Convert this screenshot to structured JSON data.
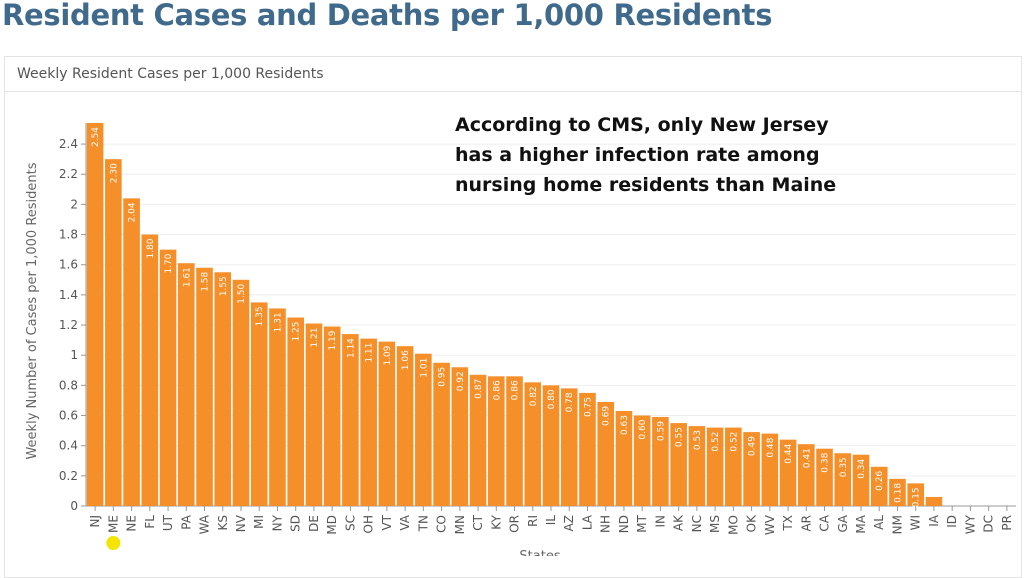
{
  "page_title": "Resident Cases and Deaths per 1,000 Residents",
  "panel_title": "Weekly Resident Cases per 1,000 Residents",
  "annotation": [
    "According to CMS, only New Jersey",
    "has a higher infection rate among",
    "nursing home residents than Maine"
  ],
  "highlight_marker": {
    "category": "ME",
    "color": "#f5e400"
  },
  "chart_data": {
    "type": "bar",
    "title": "Weekly Resident Cases per 1,000 Residents",
    "xlabel": "States",
    "ylabel": "Weekly Number of Cases per 1,000 Residents",
    "ylim": [
      0,
      2.54
    ],
    "yticks": [
      0,
      0.2,
      0.4,
      0.6,
      0.8,
      1,
      1.2,
      1.4,
      1.6,
      1.8,
      2,
      2.2,
      2.4
    ],
    "grid": true,
    "bar_color": "#f58f29",
    "categories": [
      "NJ",
      "ME",
      "NE",
      "FL",
      "UT",
      "PA",
      "WA",
      "KS",
      "NV",
      "MI",
      "NY",
      "SD",
      "DE",
      "MD",
      "SC",
      "OH",
      "VT",
      "VA",
      "TN",
      "CO",
      "MN",
      "CT",
      "KY",
      "OR",
      "RI",
      "IL",
      "AZ",
      "LA",
      "NH",
      "ND",
      "MT",
      "IN",
      "AK",
      "NC",
      "MS",
      "MO",
      "OK",
      "WV",
      "TX",
      "AR",
      "CA",
      "GA",
      "MA",
      "AL",
      "NM",
      "WI",
      "IA",
      "ID",
      "WY",
      "DC",
      "PR"
    ],
    "values": [
      2.54,
      2.3,
      2.04,
      1.8,
      1.7,
      1.61,
      1.58,
      1.55,
      1.5,
      1.35,
      1.31,
      1.25,
      1.21,
      1.19,
      1.14,
      1.11,
      1.09,
      1.06,
      1.01,
      0.95,
      0.92,
      0.87,
      0.86,
      0.86,
      0.82,
      0.8,
      0.78,
      0.75,
      0.69,
      0.63,
      0.6,
      0.59,
      0.55,
      0.53,
      0.52,
      0.52,
      0.49,
      0.48,
      0.44,
      0.41,
      0.38,
      0.35,
      0.34,
      0.26,
      0.18,
      0.15,
      0.06,
      0,
      0,
      0,
      0
    ],
    "data_labels": [
      "2.54",
      "2.30",
      "2.04",
      "1.80",
      "1.70",
      "1.61",
      "1.58",
      "1.55",
      "1.50",
      "1.35",
      "1.31",
      "1.25",
      "1.21",
      "1.19",
      "1.14",
      "1.11",
      "1.09",
      "1.06",
      "1.01",
      "0.95",
      "0.92",
      "0.87",
      "0.86",
      "0.86",
      "0.82",
      "0.80",
      "0.78",
      "0.75",
      "0.69",
      "0.63",
      "0.60",
      "0.59",
      "0.55",
      "0.53",
      "0.52",
      "0.52",
      "0.49",
      "0.48",
      "0.44",
      "0.41",
      "0.38",
      "0.35",
      "0.34",
      "0.26",
      "0.18",
      "0.15",
      "",
      "",
      "",
      "",
      ""
    ]
  }
}
